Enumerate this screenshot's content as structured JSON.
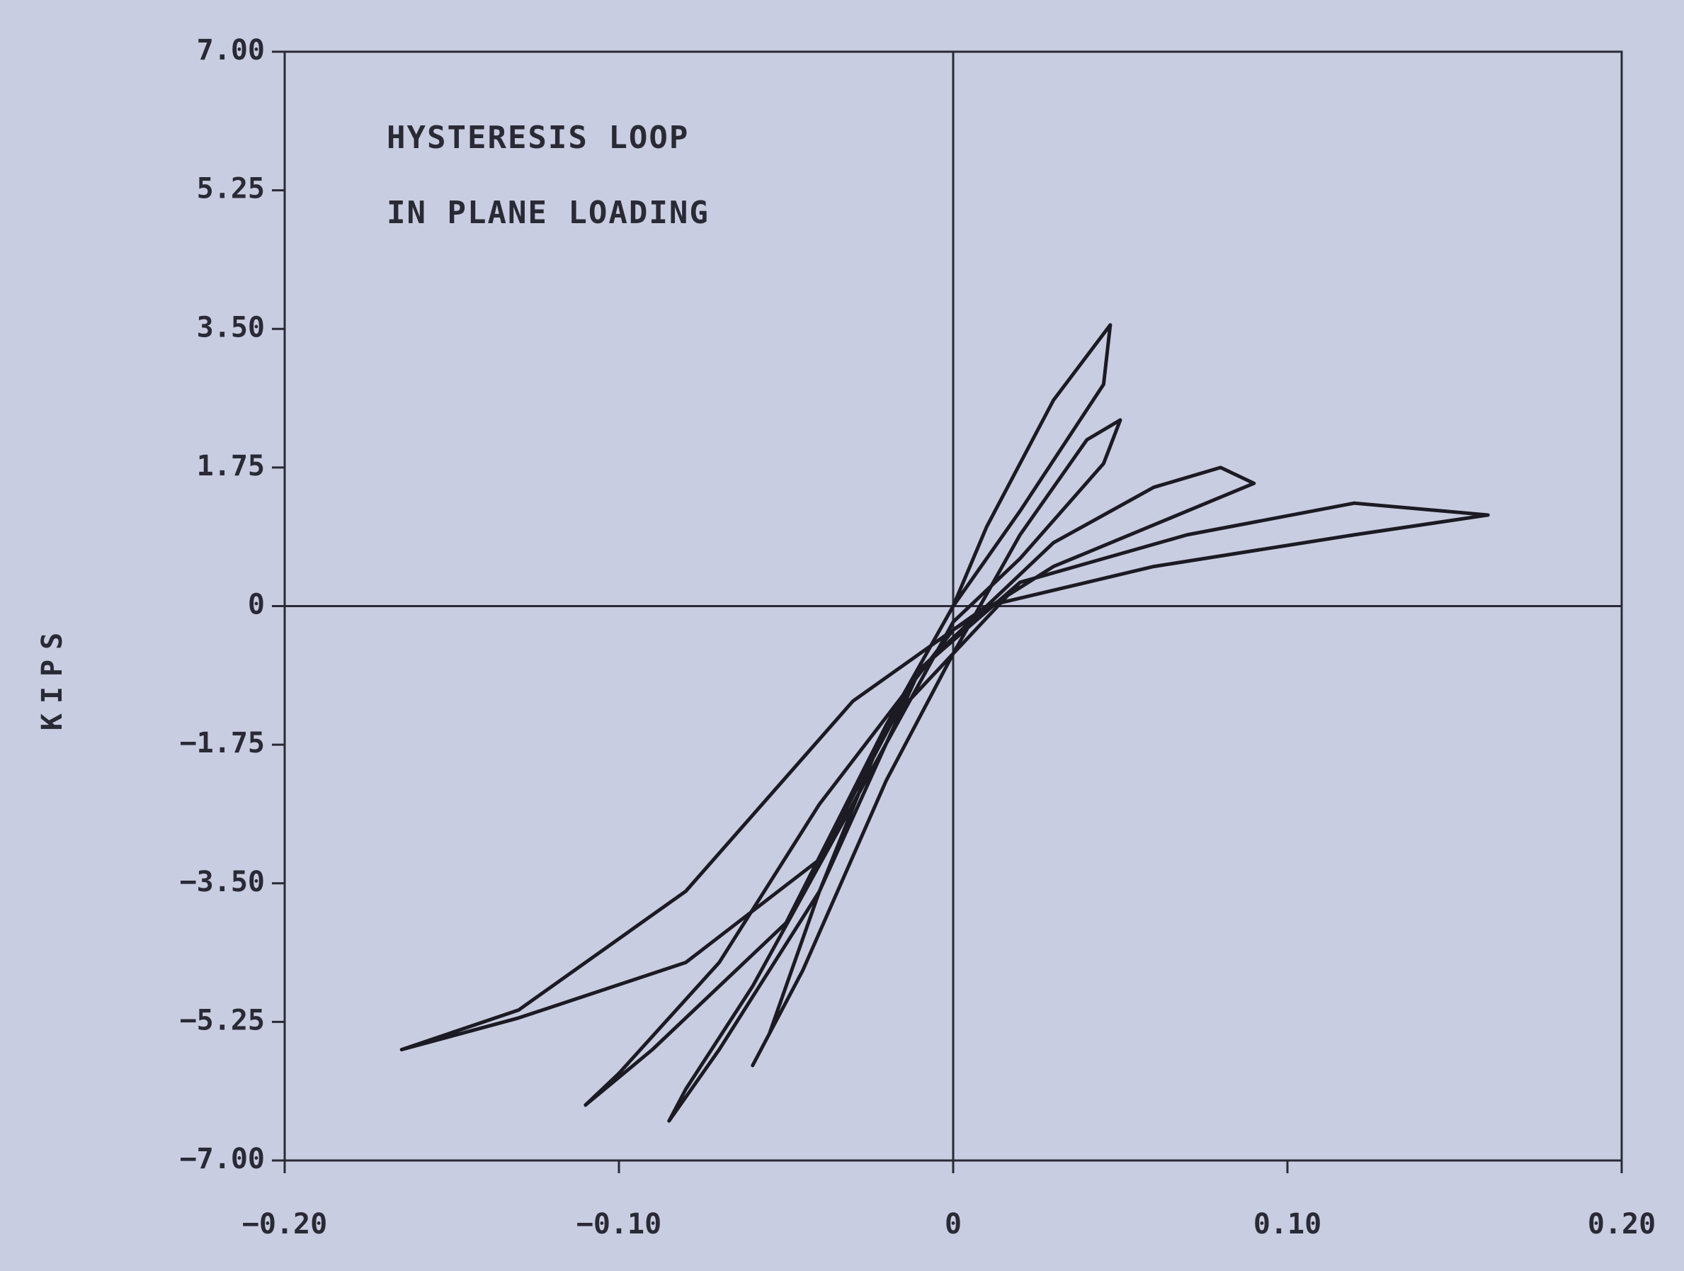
{
  "chart_data": {
    "type": "line",
    "title": "HYSTERESIS LOOP",
    "subtitle": "IN PLANE LOADING",
    "y_label": "KIPS",
    "xlim": [
      -0.2,
      0.2
    ],
    "ylim": [
      -7,
      7
    ],
    "xticks": [
      {
        "value": -0.2,
        "label": "−0.20"
      },
      {
        "value": -0.1,
        "label": "−0.10"
      },
      0,
      {
        "value": 0.1,
        "label": "0.10"
      },
      {
        "value": 0.2,
        "label": "0.20"
      }
    ],
    "yticks": [
      {
        "value": -7,
        "label": "−7.00"
      },
      {
        "value": -5.25,
        "label": "−5.25"
      },
      {
        "value": -3.5,
        "label": "−3.50"
      },
      {
        "value": -1.75,
        "label": "−1.75"
      },
      0,
      {
        "value": 1.75,
        "label": "1.75"
      },
      {
        "value": 3.5,
        "label": "3.50"
      },
      {
        "value": 5.25,
        "label": "5.25"
      },
      {
        "value": 7,
        "label": "7.00"
      }
    ],
    "color": "#1c1a22",
    "series": [
      {
        "x": [
          0,
          0.01,
          0.03,
          0.047,
          0.045,
          0.02,
          0,
          -0.02,
          -0.04,
          -0.055,
          -0.06,
          -0.045,
          -0.02,
          0,
          0.02,
          0.04,
          0.05,
          0.045,
          0.02,
          0,
          -0.03,
          -0.06,
          -0.08,
          -0.085,
          -0.07,
          -0.04,
          -0.01,
          0.03,
          0.06,
          0.08,
          0.09,
          0.07,
          0.03,
          0,
          -0.04,
          -0.07,
          -0.1,
          -0.11,
          -0.09,
          -0.05,
          -0.02,
          0.02,
          0.07,
          0.12,
          0.16,
          0.12,
          0.06,
          0.01,
          -0.03,
          -0.08,
          -0.13,
          -0.165,
          -0.13,
          -0.08,
          -0.04,
          -0.01,
          0.02
        ],
        "values": [
          0,
          1.0,
          2.6,
          3.55,
          2.8,
          1.2,
          0,
          -1.5,
          -3.6,
          -5.4,
          -5.8,
          -4.6,
          -2.2,
          -0.6,
          0.9,
          2.1,
          2.35,
          1.8,
          0.6,
          -0.2,
          -2.5,
          -4.8,
          -6.1,
          -6.5,
          -5.6,
          -3.6,
          -0.8,
          0.8,
          1.5,
          1.75,
          1.55,
          1.2,
          0.5,
          -0.3,
          -2.5,
          -4.5,
          -5.9,
          -6.3,
          -5.6,
          -4.0,
          -1.5,
          0.3,
          0.9,
          1.3,
          1.15,
          0.9,
          0.5,
          0,
          -1.2,
          -3.6,
          -5.1,
          -5.6,
          -5.2,
          -4.5,
          -3.2,
          -0.8,
          0.3
        ]
      }
    ]
  }
}
